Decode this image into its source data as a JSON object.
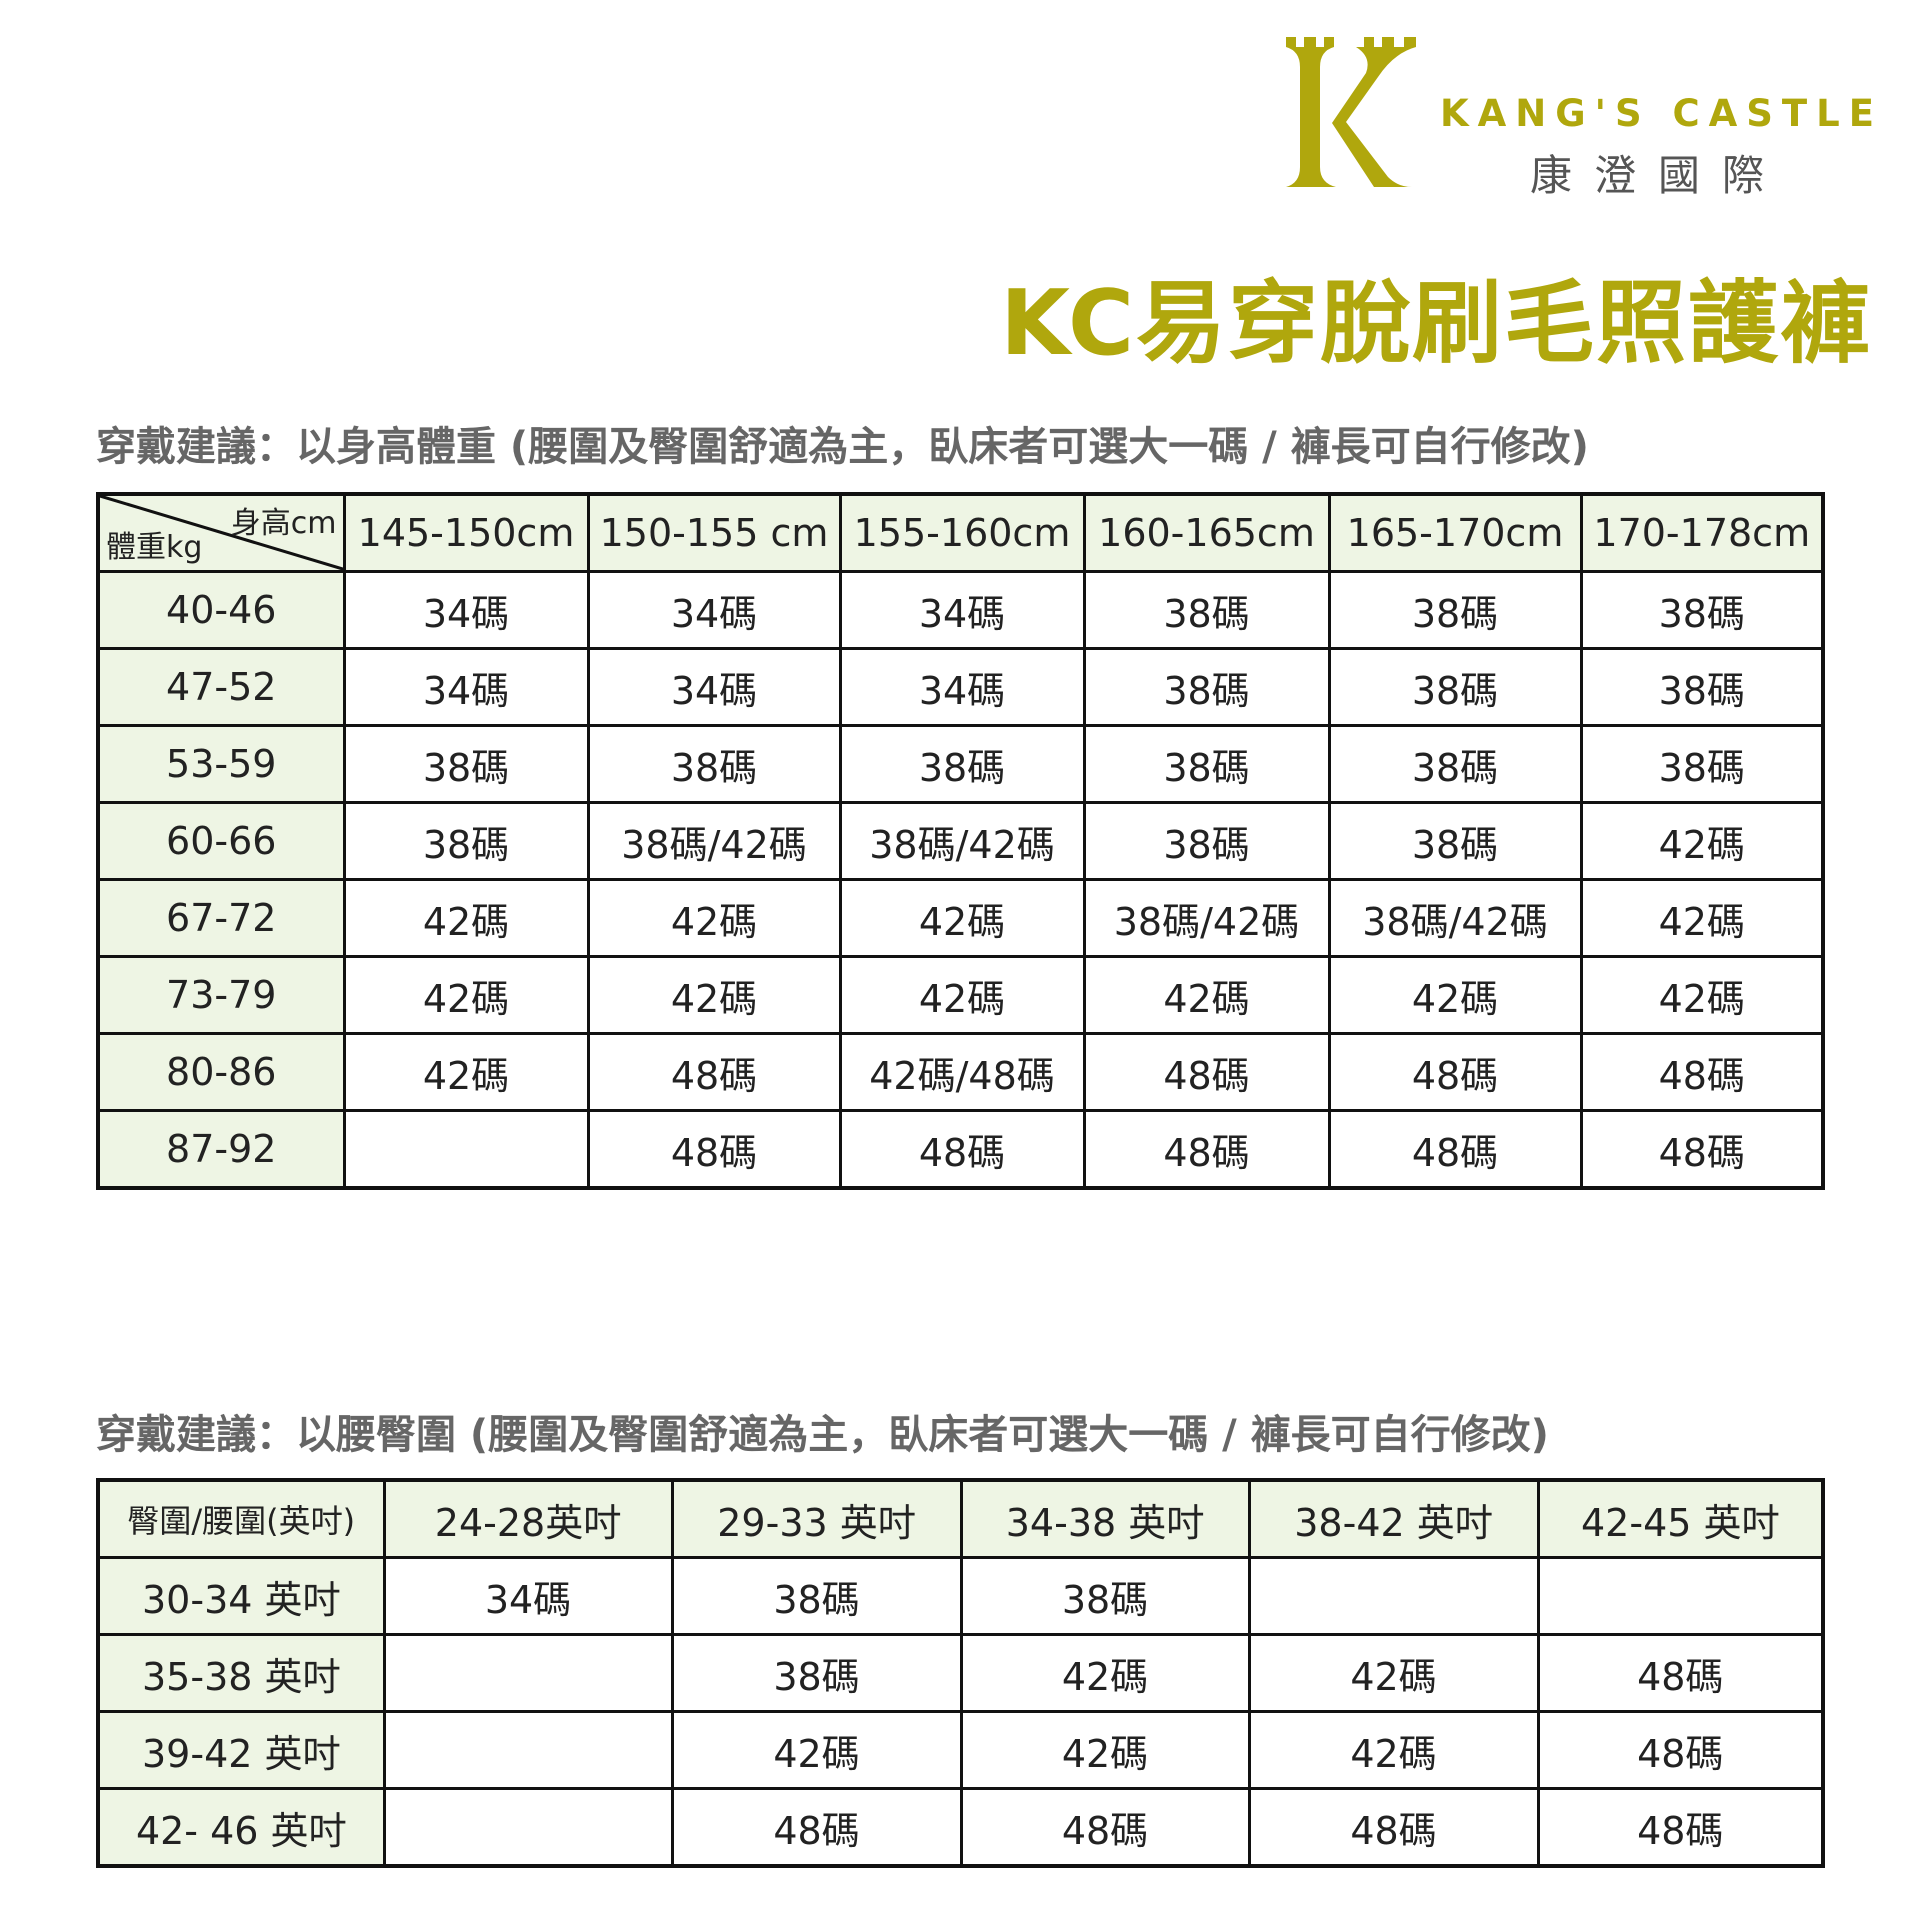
{
  "brand": {
    "name_en": "KANG'S CASTLE",
    "name_zh": "康澄國際",
    "logo_letter": "K",
    "color": "#b0a70d"
  },
  "title": "KC易穿脫刷毛照護褲",
  "table1": {
    "title": "穿戴建議：以身高體重 (腰圍及臀圍舒適為主，臥床者可選大一碼 / 褲長可自行修改)",
    "corner_top": "身高cm",
    "corner_bottom": "體重kg",
    "columns": [
      "145-150cm",
      "150-155  cm",
      "155-160cm",
      "160-165cm",
      "165-170cm",
      "170-178cm"
    ],
    "rows": [
      {
        "label": "40-46",
        "cells": [
          "34碼",
          "34碼",
          "34碼",
          "38碼",
          "38碼",
          "38碼"
        ]
      },
      {
        "label": "47-52",
        "cells": [
          "34碼",
          "34碼",
          "34碼",
          "38碼",
          "38碼",
          "38碼"
        ]
      },
      {
        "label": "53-59",
        "cells": [
          "38碼",
          "38碼",
          "38碼",
          "38碼",
          "38碼",
          "38碼"
        ]
      },
      {
        "label": "60-66",
        "cells": [
          "38碼",
          "38碼/42碼",
          "38碼/42碼",
          "38碼",
          "38碼",
          "42碼"
        ]
      },
      {
        "label": "67-72",
        "cells": [
          "42碼",
          "42碼",
          "42碼",
          "38碼/42碼",
          "38碼/42碼",
          "42碼"
        ]
      },
      {
        "label": "73-79",
        "cells": [
          "42碼",
          "42碼",
          "42碼",
          "42碼",
          "42碼",
          "42碼"
        ]
      },
      {
        "label": "80-86",
        "cells": [
          "42碼",
          "48碼",
          "42碼/48碼",
          "48碼",
          "48碼",
          "48碼"
        ]
      },
      {
        "label": "87-92",
        "cells": [
          "",
          "48碼",
          "48碼",
          "48碼",
          "48碼",
          "48碼"
        ]
      }
    ]
  },
  "table2": {
    "title": "穿戴建議：以腰臀圍 (腰圍及臀圍舒適為主，臥床者可選大一碼 / 褲長可自行修改)",
    "corner": "臀圍/腰圍(英吋)",
    "columns": [
      "24-28英吋",
      "29-33 英吋",
      "34-38 英吋",
      "38-42 英吋",
      "42-45 英吋"
    ],
    "rows": [
      {
        "label": "30-34 英吋",
        "cells": [
          "34碼",
          "38碼",
          "38碼",
          "",
          ""
        ]
      },
      {
        "label": "35-38 英吋",
        "cells": [
          "",
          "38碼",
          "42碼",
          "42碼",
          "48碼"
        ]
      },
      {
        "label": "39-42 英吋",
        "cells": [
          "",
          "42碼",
          "42碼",
          "42碼",
          "48碼"
        ]
      },
      {
        "label": "42- 46 英吋",
        "cells": [
          "",
          "48碼",
          "48碼",
          "48碼",
          "48碼"
        ]
      }
    ]
  },
  "colors": {
    "header_bg": "#eef5e4",
    "border": "#111111"
  }
}
